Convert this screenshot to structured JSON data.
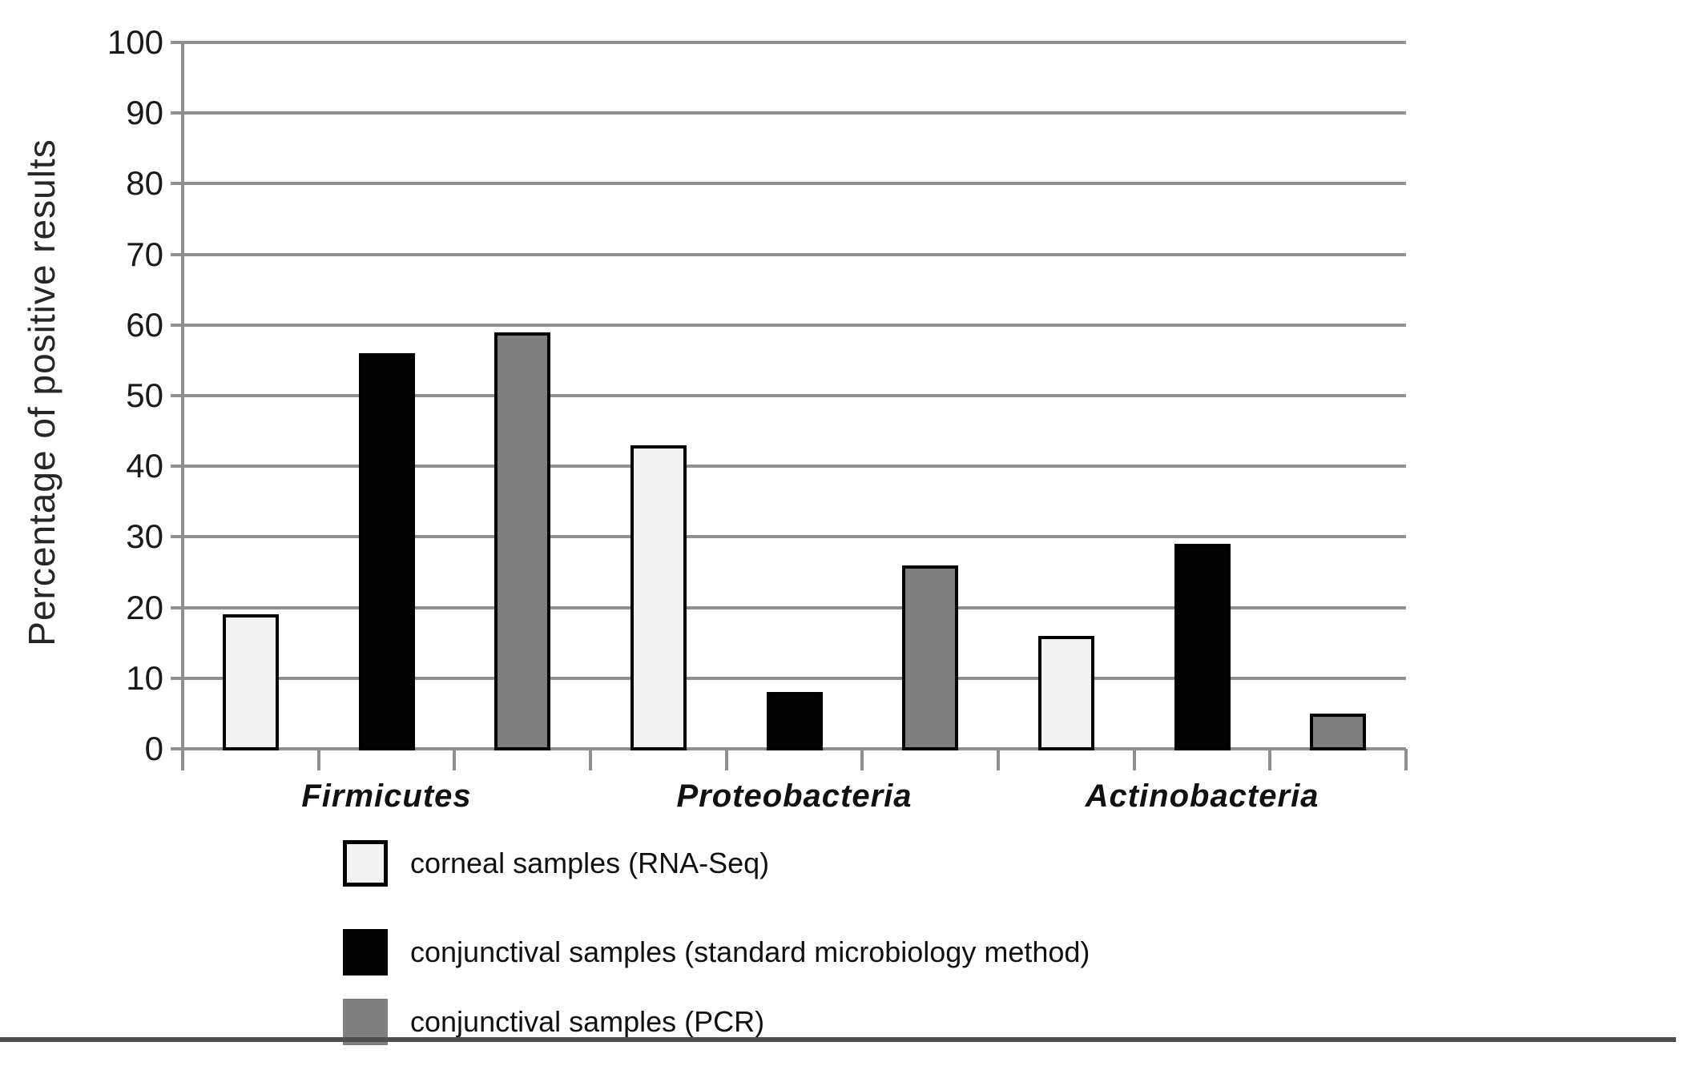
{
  "chart_data": {
    "type": "bar",
    "title": "",
    "ylabel": "Percentage of positive results",
    "xlabel": "",
    "ylim": [
      0,
      100
    ],
    "ytick_interval": 10,
    "yticks": [
      0,
      10,
      20,
      30,
      40,
      50,
      60,
      70,
      80,
      90,
      100
    ],
    "grid": "horizontal gridlines on",
    "legend_position": "below plot, left-aligned",
    "categories": [
      "Firmicutes",
      "Proteobacteria",
      "Actinobacteria"
    ],
    "series": [
      {
        "name": "corneal samples (RNA-Seq)",
        "color": "#f2f2f2",
        "swatch_border": "#000000",
        "values": [
          19,
          43,
          16
        ]
      },
      {
        "name": "conjunctival samples (standard microbiology method)",
        "color": "#030303",
        "swatch_border": "#030303",
        "values": [
          56,
          8,
          29
        ]
      },
      {
        "name": "conjunctival samples (PCR)",
        "color": "#7f7f7f",
        "swatch_border": "#7f7f7f",
        "values": [
          59,
          26,
          5
        ]
      }
    ],
    "colors": {
      "gridline": "#8f8f8f",
      "axis": "#8f8f8f",
      "bar_border": "#000000",
      "tick_text": "#1a1a1a",
      "bottom_rule": "#4d4d4d",
      "background": "#ffffff"
    }
  }
}
